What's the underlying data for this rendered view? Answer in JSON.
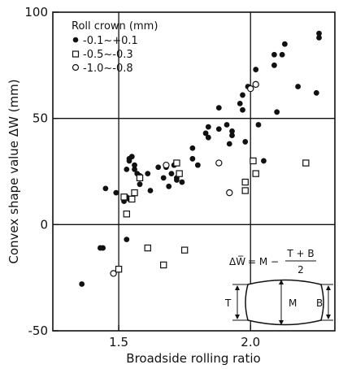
{
  "chart_data": {
    "type": "scatter",
    "xlabel": "Broadside rolling ratio",
    "ylabel": "Convex shape value  ΔW  (mm)",
    "xlim": [
      1.25,
      2.32
    ],
    "ylim": [
      -50,
      100
    ],
    "x_ticks": [
      {
        "value": 1.5,
        "label": "1.5"
      },
      {
        "value": 2.0,
        "label": "2.0"
      }
    ],
    "y_ticks": [
      {
        "value": 100,
        "label": "100"
      },
      {
        "value": 50,
        "label": "50"
      },
      {
        "value": 0,
        "label": "0"
      },
      {
        "value": -50,
        "label": "-50"
      }
    ],
    "reference_lines": {
      "x": [
        1.5,
        2.0
      ],
      "y": [
        0,
        50
      ]
    },
    "grid": false,
    "legend": {
      "title": "Roll crown (mm)",
      "position": "top-left"
    },
    "series": [
      {
        "name": "-0.1~+0.1",
        "marker": "filled-circle",
        "points": [
          [
            1.36,
            -28
          ],
          [
            1.43,
            -11
          ],
          [
            1.44,
            -11
          ],
          [
            1.45,
            17
          ],
          [
            1.49,
            15
          ],
          [
            1.52,
            13
          ],
          [
            1.52,
            11
          ],
          [
            1.53,
            13
          ],
          [
            1.54,
            12
          ],
          [
            1.53,
            -7
          ],
          [
            1.53,
            26
          ],
          [
            1.54,
            30
          ],
          [
            1.54,
            31
          ],
          [
            1.55,
            32
          ],
          [
            1.56,
            28
          ],
          [
            1.56,
            26
          ],
          [
            1.57,
            24
          ],
          [
            1.58,
            23
          ],
          [
            1.58,
            19
          ],
          [
            1.61,
            24
          ],
          [
            1.62,
            16
          ],
          [
            1.65,
            27
          ],
          [
            1.67,
            22
          ],
          [
            1.68,
            27
          ],
          [
            1.69,
            18
          ],
          [
            1.7,
            24
          ],
          [
            1.71,
            28
          ],
          [
            1.72,
            22
          ],
          [
            1.72,
            21
          ],
          [
            1.74,
            20
          ],
          [
            1.78,
            36
          ],
          [
            1.78,
            31
          ],
          [
            1.8,
            28
          ],
          [
            1.83,
            43
          ],
          [
            1.84,
            41
          ],
          [
            1.84,
            46
          ],
          [
            1.88,
            55
          ],
          [
            1.88,
            45
          ],
          [
            1.91,
            47
          ],
          [
            1.92,
            38
          ],
          [
            1.93,
            42
          ],
          [
            1.93,
            44
          ],
          [
            1.96,
            57
          ],
          [
            1.97,
            61
          ],
          [
            1.97,
            54
          ],
          [
            1.98,
            39
          ],
          [
            1.99,
            65
          ],
          [
            2.02,
            73
          ],
          [
            2.03,
            47
          ],
          [
            2.05,
            30
          ],
          [
            2.09,
            75
          ],
          [
            2.09,
            80
          ],
          [
            2.1,
            53
          ],
          [
            2.12,
            80
          ],
          [
            2.13,
            85
          ],
          [
            2.18,
            65
          ],
          [
            2.25,
            62
          ],
          [
            2.26,
            90
          ],
          [
            2.26,
            88
          ]
        ]
      },
      {
        "name": "-0.5~-0.3",
        "marker": "open-square",
        "points": [
          [
            1.5,
            -21
          ],
          [
            1.52,
            13
          ],
          [
            1.53,
            5
          ],
          [
            1.55,
            12
          ],
          [
            1.56,
            15
          ],
          [
            1.58,
            22
          ],
          [
            1.61,
            -11
          ],
          [
            1.67,
            -19
          ],
          [
            1.72,
            29
          ],
          [
            1.73,
            24
          ],
          [
            1.75,
            -12
          ],
          [
            1.98,
            16
          ],
          [
            1.98,
            20
          ],
          [
            2.01,
            30
          ],
          [
            2.02,
            24
          ],
          [
            2.21,
            29
          ]
        ]
      },
      {
        "name": "-1.0~-0.8",
        "marker": "open-circle",
        "points": [
          [
            1.48,
            -23
          ],
          [
            1.68,
            28
          ],
          [
            1.88,
            29
          ],
          [
            1.92,
            15
          ],
          [
            2.0,
            64
          ],
          [
            2.02,
            66
          ]
        ]
      }
    ],
    "inset": {
      "formula": {
        "lhs": "ΔW̅",
        "eq": "= M −",
        "numerator": "T + B",
        "denominator": "2"
      },
      "labels": {
        "top": "T",
        "middle": "M",
        "bottom": "B"
      }
    }
  }
}
